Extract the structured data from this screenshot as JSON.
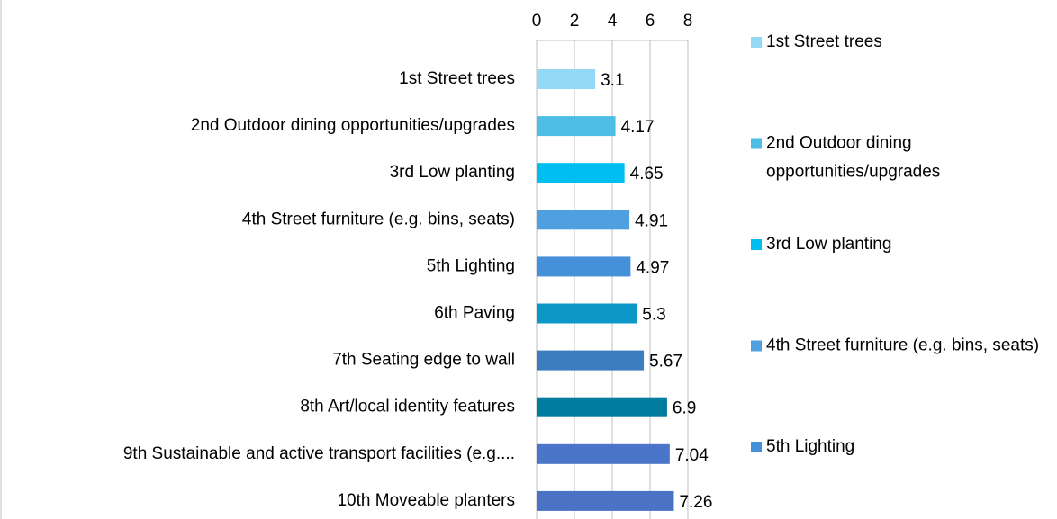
{
  "chart_data": {
    "type": "bar",
    "orientation": "horizontal",
    "categories": [
      "1st Street trees",
      "2nd Outdoor dining opportunities/upgrades",
      "3rd Low planting",
      "4th Street furniture (e.g. bins, seats)",
      "5th Lighting",
      "6th Paving",
      "7th Seating edge to wall",
      "8th Art/local identity features",
      "9th Sustainable and active transport facilities (e.g....",
      "10th Moveable planters"
    ],
    "values": [
      3.1,
      4.17,
      4.65,
      4.91,
      4.97,
      5.3,
      5.67,
      6.9,
      7.04,
      7.26
    ],
    "colors": [
      "#93d9f5",
      "#4dbde6",
      "#00bff0",
      "#4fa0e0",
      "#4690d9",
      "#0b98c9",
      "#3b7dbf",
      "#007c9f",
      "#4a75c8",
      "#4a73c5"
    ],
    "xlim": [
      0,
      8
    ],
    "xticks": [
      0,
      2,
      4,
      6,
      8
    ],
    "grid": true,
    "legend": "right"
  }
}
